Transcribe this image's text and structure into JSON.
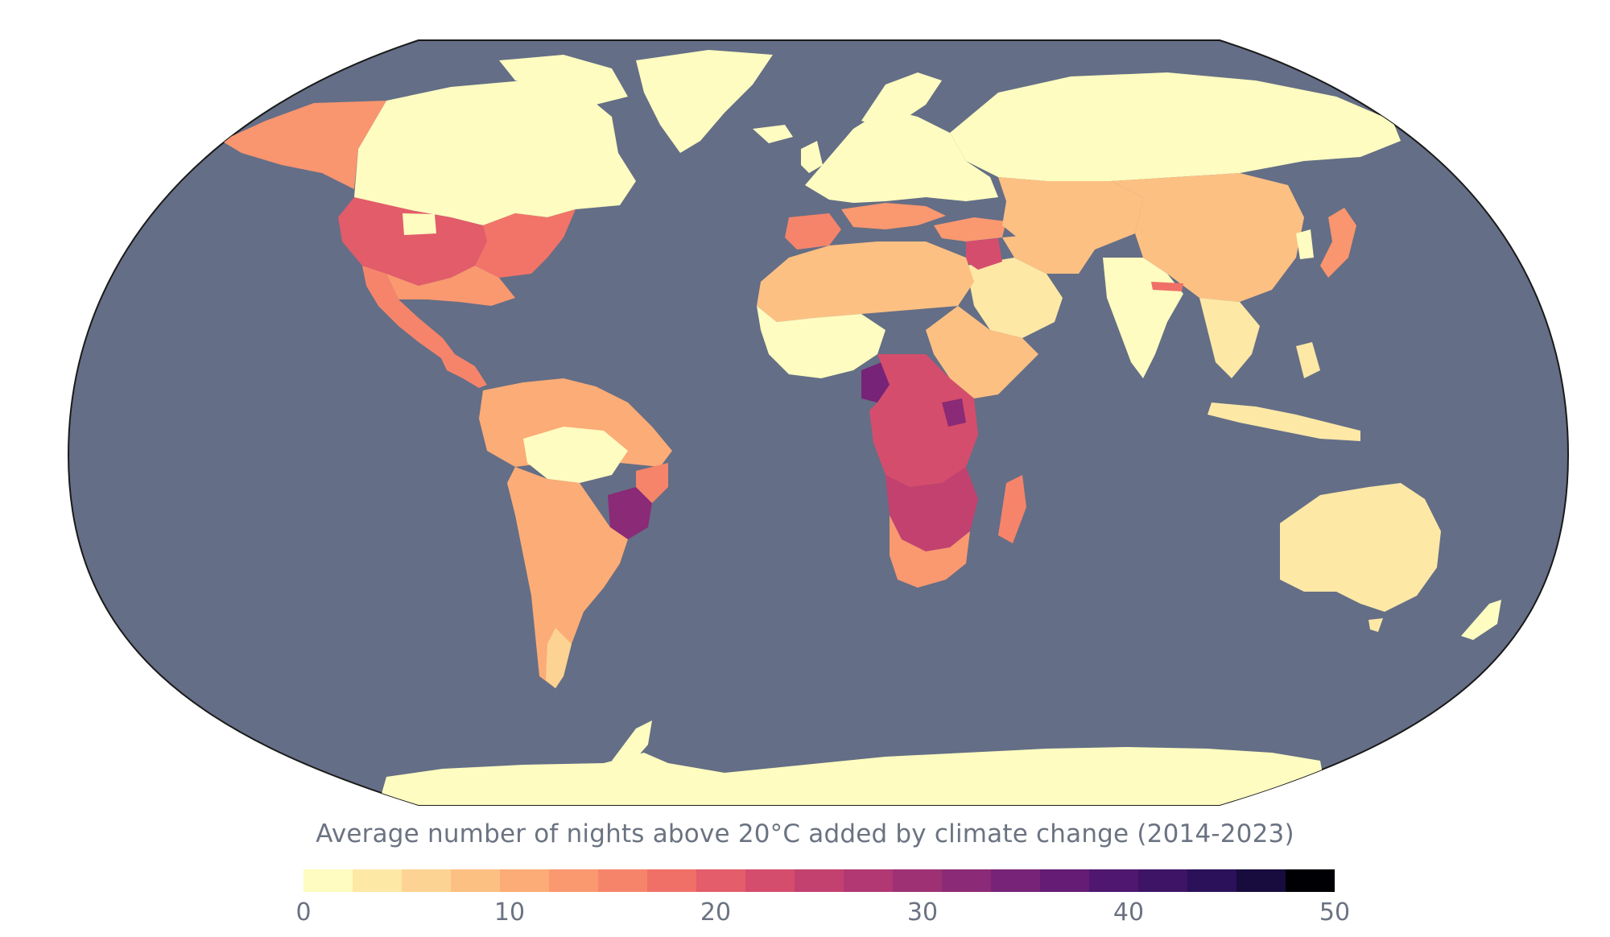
{
  "map": {
    "ocean_color": "#646e86",
    "outline_color": "#1a1a1a",
    "regions": [
      {
        "name": "North America North",
        "value": 0
      },
      {
        "name": "Alaska",
        "value": 10
      },
      {
        "name": "United States Central",
        "value": 20
      },
      {
        "name": "United States East",
        "value": 16
      },
      {
        "name": "Mexico",
        "value": 12
      },
      {
        "name": "Central America",
        "value": 12
      },
      {
        "name": "Greenland",
        "value": 0
      },
      {
        "name": "South America North",
        "value": 6
      },
      {
        "name": "Amazon",
        "value": 2
      },
      {
        "name": "Brazil Southeast",
        "value": 33
      },
      {
        "name": "South America South",
        "value": 8
      },
      {
        "name": "Europe",
        "value": 2
      },
      {
        "name": "Iberia",
        "value": 12
      },
      {
        "name": "Mediterranean",
        "value": 10
      },
      {
        "name": "Russia North",
        "value": 0
      },
      {
        "name": "Central Asia",
        "value": 7
      },
      {
        "name": "China",
        "value": 7
      },
      {
        "name": "India",
        "value": 0
      },
      {
        "name": "Southeast Asia",
        "value": 3
      },
      {
        "name": "Japan",
        "value": 10
      },
      {
        "name": "Arabia",
        "value": 4
      },
      {
        "name": "Levant",
        "value": 22
      },
      {
        "name": "North Africa",
        "value": 6
      },
      {
        "name": "West Africa",
        "value": 2
      },
      {
        "name": "East Africa",
        "value": 10
      },
      {
        "name": "Central Africa",
        "value": 20
      },
      {
        "name": "Cameroon",
        "value": 30
      },
      {
        "name": "Southern Africa",
        "value": 23
      },
      {
        "name": "South Africa",
        "value": 12
      },
      {
        "name": "Madagascar",
        "value": 12
      },
      {
        "name": "Australia",
        "value": 4
      },
      {
        "name": "New Zealand",
        "value": 0
      },
      {
        "name": "Antarctica",
        "value": 0
      }
    ]
  },
  "legend": {
    "title": "Average number of nights above 20°C added by climate change (2014-2023)",
    "ticks": [
      "0",
      "10",
      "20",
      "30",
      "40",
      "50"
    ],
    "min": 0,
    "max": 50,
    "colors": [
      "#fefcc0",
      "#fde8a6",
      "#fdd393",
      "#fdc083",
      "#fcac77",
      "#fa9870",
      "#f6846b",
      "#f07068",
      "#e45d6a",
      "#d54d6d",
      "#c3416f",
      "#b13872",
      "#9e3174",
      "#8b2a76",
      "#772377",
      "#641c75",
      "#501770",
      "#3d1466",
      "#2a1159",
      "#170c3d",
      "#000004"
    ]
  }
}
